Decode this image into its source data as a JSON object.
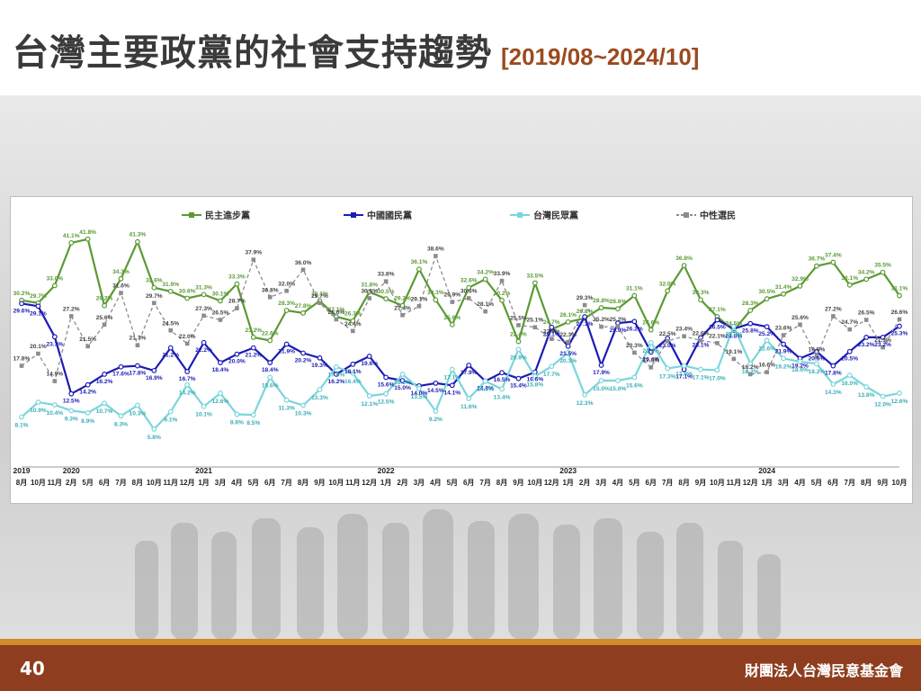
{
  "title": {
    "main": "台灣主要政黨的社會支持趨勢",
    "range": "[2019/08~2024/10]"
  },
  "footer": {
    "page_number": "40",
    "organization": "財團法人台灣民意基金會"
  },
  "colors": {
    "dpp": "#5a9a33",
    "kmt": "#1c1cb4",
    "tpp": "#7ad6dc",
    "neutral": "#8c8c8c",
    "title_accent": "#9c4a1f",
    "footer_bg": "#8e3e1f",
    "footer_line": "#d38b2a"
  },
  "chart_data": {
    "type": "line",
    "title": "",
    "xlabel": "",
    "ylabel": "",
    "ylim": [
      0,
      45
    ],
    "grid": false,
    "legend_position": "top",
    "x": [
      "2019-08",
      "2019-10",
      "2019-11",
      "2020-02",
      "2020-05",
      "2020-06",
      "2020-07",
      "2020-08",
      "2020-10",
      "2020-11",
      "2020-12",
      "2021-01",
      "2021-03",
      "2021-04",
      "2021-05",
      "2021-06",
      "2021-07",
      "2021-08",
      "2021-09",
      "2021-10",
      "2021-11",
      "2021-12",
      "2022-01",
      "2022-02",
      "2022-03",
      "2022-04",
      "2022-05",
      "2022-06",
      "2022-07",
      "2022-08",
      "2022-09",
      "2022-10",
      "2022-12",
      "2023-01",
      "2023-02",
      "2023-03",
      "2023-04",
      "2023-05",
      "2023-06",
      "2023-07",
      "2023-08",
      "2023-09",
      "2023-10",
      "2023-11",
      "2023-12",
      "2024-01",
      "2024-03",
      "2024-04",
      "2024-05",
      "2024-06",
      "2024-07",
      "2024-08",
      "2024-09",
      "2024-10"
    ],
    "tick_labels": [
      "8月",
      "10月",
      "11月",
      "2月",
      "5月",
      "6月",
      "7月",
      "8月",
      "10月",
      "11月",
      "12月",
      "1月",
      "3月",
      "4月",
      "5月",
      "6月",
      "7月",
      "8月",
      "9月",
      "10月",
      "11月",
      "12月",
      "1月",
      "2月",
      "3月",
      "4月",
      "5月",
      "6月",
      "7月",
      "8月",
      "9月",
      "10月",
      "12月",
      "1月",
      "2月",
      "3月",
      "4月",
      "5月",
      "6月",
      "7月",
      "8月",
      "9月",
      "10月",
      "11月",
      "12月",
      "1月",
      "3月",
      "4月",
      "5月",
      "6月",
      "7月",
      "8月",
      "9月",
      "10月"
    ],
    "year_labels": [
      {
        "label": "2019",
        "index": 0
      },
      {
        "label": "2020",
        "index": 3
      },
      {
        "label": "2021",
        "index": 11
      },
      {
        "label": "2022",
        "index": 22
      },
      {
        "label": "2023",
        "index": 33
      },
      {
        "label": "2024",
        "index": 45
      }
    ],
    "series": [
      {
        "name": "民主進步黨",
        "key": "dpp",
        "values": [
          30.2,
          29.7,
          33.0,
          41.1,
          41.8,
          29.2,
          34.3,
          41.3,
          32.6,
          31.9,
          30.6,
          31.3,
          30.1,
          33.3,
          23.2,
          22.6,
          28.3,
          27.8,
          30.1,
          27.1,
          26.3,
          31.8,
          30.5,
          29.2,
          36.1,
          30.3,
          25.6,
          32.6,
          34.2,
          30.2,
          22.4,
          33.5,
          24.7,
          26.1,
          26.8,
          28.8,
          28.6,
          31.1,
          24.6,
          32.0,
          36.8,
          30.3,
          27.1,
          24.5,
          28.3,
          30.5,
          31.4,
          32.9,
          36.7,
          37.4,
          33.1,
          34.2,
          35.5,
          31.1
        ],
        "labels": [
          "30.2%",
          "29.7%",
          "33.0%",
          "41.1%",
          "41.8%",
          "29.2%",
          "34.3%",
          "41.3%",
          "32.6%",
          "31.9%",
          "30.6%",
          "31.3%",
          "30.1%",
          "33.3%",
          "23.2%",
          "22.6%",
          "28.3%",
          "27.8%",
          "30.1%",
          "27.1%",
          "26.3%",
          "31.8%",
          "30.5%",
          "29.2%",
          "36.1%",
          "30.3%",
          "25.6%",
          "32.6%",
          "34.2%",
          "30.2%",
          "22.4%",
          "33.5%",
          "24.7%",
          "26.1%",
          "26.8%",
          "28.8%",
          "28.6%",
          "31.1%",
          "24.6%",
          "32.0%",
          "36.8%",
          "30.3%",
          "27.1%",
          "24.5%",
          "28.3%",
          "30.5%",
          "31.4%",
          "32.9%",
          "36.7%",
          "37.4%",
          "33.1%",
          "34.2%",
          "35.5%",
          "31.1%"
        ]
      },
      {
        "name": "中國國民黨",
        "key": "kmt",
        "values": [
          29.6,
          29.1,
          23.3,
          12.5,
          14.2,
          16.2,
          17.6,
          17.8,
          16.9,
          21.2,
          16.7,
          22.2,
          18.4,
          20.0,
          21.2,
          18.4,
          21.9,
          20.2,
          19.3,
          16.2,
          18.1,
          19.6,
          15.6,
          15.0,
          14.0,
          14.5,
          14.1,
          17.9,
          14.9,
          16.5,
          15.4,
          16.6,
          25.1,
          21.5,
          27.1,
          17.9,
          25.9,
          26.2,
          20.4,
          23.0,
          17.1,
          23.1,
          26.5,
          24.8,
          25.8,
          25.2,
          21.9,
          19.2,
          20.5,
          17.8,
          20.5,
          23.2,
          23.2,
          25.3
        ],
        "labels": [
          "29.6%",
          "29.1%",
          "23.3%",
          "12.5%",
          "14.2%",
          "16.2%",
          "17.6%",
          "17.8%",
          "16.9%",
          "21.2%",
          "16.7%",
          "22.2%",
          "18.4%",
          "20.0%",
          "21.2%",
          "18.4%",
          "21.9%",
          "20.2%",
          "19.3%",
          "16.2%",
          "18.1%",
          "19.6%",
          "15.6%",
          "15.0%",
          "14.0%",
          "14.5%",
          "14.1%",
          "17.9%",
          "14.9%",
          "16.5%",
          "15.4%",
          "16.6%",
          "25.1%",
          "21.5%",
          "27.1%",
          "17.9%",
          "25.9%",
          "26.2%",
          "20.4%",
          "23.0%",
          "17.1%",
          "23.1%",
          "26.5%",
          "24.8%",
          "25.8%",
          "25.2%",
          "21.9%",
          "19.2%",
          "20.5%",
          "17.8%",
          "20.5%",
          "23.2%",
          "23.2%",
          "25.3%"
        ]
      },
      {
        "name": "台灣民眾黨",
        "key": "tpp",
        "values": [
          8.1,
          10.9,
          10.4,
          9.3,
          8.9,
          10.7,
          8.3,
          10.3,
          5.8,
          9.1,
          14.2,
          10.1,
          12.6,
          8.6,
          8.5,
          15.6,
          11.3,
          10.3,
          13.3,
          17.6,
          16.4,
          12.1,
          12.5,
          16.2,
          13.5,
          9.2,
          17.1,
          11.6,
          14.9,
          13.4,
          20.9,
          15.8,
          17.7,
          20.3,
          12.3,
          15.0,
          15.0,
          15.6,
          22.2,
          17.3,
          17.8,
          17.1,
          17.0,
          25.3,
          18.2,
          22.6,
          19.2,
          18.6,
          18.2,
          14.3,
          16.0,
          13.8,
          12.0,
          12.6
        ],
        "labels": [
          "8.1%",
          "10.9%",
          "10.4%",
          "9.3%",
          "8.9%",
          "10.7%",
          "8.3%",
          "10.3%",
          "5.8%",
          "9.1%",
          "14.2%",
          "10.1%",
          "12.6%",
          "8.6%",
          "8.5%",
          "15.6%",
          "11.3%",
          "10.3%",
          "13.3%",
          "17.6%",
          "16.4%",
          "12.1%",
          "12.5%",
          "16.2%",
          "13.5%",
          "9.2%",
          "17.1%",
          "11.6%",
          "14.9%",
          "13.4%",
          "20.9%",
          "15.8%",
          "17.7%",
          "20.3%",
          "12.3%",
          "15.0%",
          "15.0%",
          "15.6%",
          "22.2%",
          "17.3%",
          "17.8%",
          "17.1%",
          "17.0%",
          "25.3%",
          "18.2%",
          "22.6%",
          "19.2%",
          "18.6%",
          "18.2%",
          "14.3%",
          "16.0%",
          "13.8%",
          "12.0%",
          "12.6%"
        ]
      },
      {
        "name": "中性選民",
        "key": "neutral",
        "values": [
          17.8,
          20.1,
          14.9,
          27.2,
          21.5,
          25.6,
          31.6,
          21.7,
          29.7,
          24.5,
          22.0,
          27.3,
          26.5,
          28.7,
          37.9,
          30.8,
          32.0,
          36.0,
          29.7,
          26.6,
          24.4,
          30.6,
          33.8,
          27.4,
          29.1,
          38.6,
          29.9,
          30.6,
          28.1,
          33.9,
          25.5,
          25.1,
          22.9,
          22.3,
          29.3,
          25.2,
          25.2,
          20.3,
          17.5,
          22.5,
          23.4,
          22.6,
          22.1,
          19.1,
          16.2,
          16.6,
          23.6,
          25.6,
          19.5,
          27.2,
          24.7,
          26.5,
          21.3,
          26.6
        ],
        "labels": [
          "17.8%",
          "20.1%",
          "14.9%",
          "27.2%",
          "21.5%",
          "25.6%",
          "31.6%",
          "21.7%",
          "29.7%",
          "24.5%",
          "22.0%",
          "27.3%",
          "26.5%",
          "28.7%",
          "37.9%",
          "30.8%",
          "32.0%",
          "36.0%",
          "29.7%",
          "26.6%",
          "24.4%",
          "30.6%",
          "33.8%",
          "27.4%",
          "29.1%",
          "38.6%",
          "29.9%",
          "30.6%",
          "28.1%",
          "33.9%",
          "25.5%",
          "25.1%",
          "22.9%",
          "22.3%",
          "29.3%",
          "25.2%",
          "25.2%",
          "20.3%",
          "17.5%",
          "22.5%",
          "23.4%",
          "22.6%",
          "22.1%",
          "19.1%",
          "16.2%",
          "16.6%",
          "23.6%",
          "25.6%",
          "19.5%",
          "27.2%",
          "24.7%",
          "26.5%",
          "21.3%",
          "26.6%"
        ]
      }
    ]
  }
}
